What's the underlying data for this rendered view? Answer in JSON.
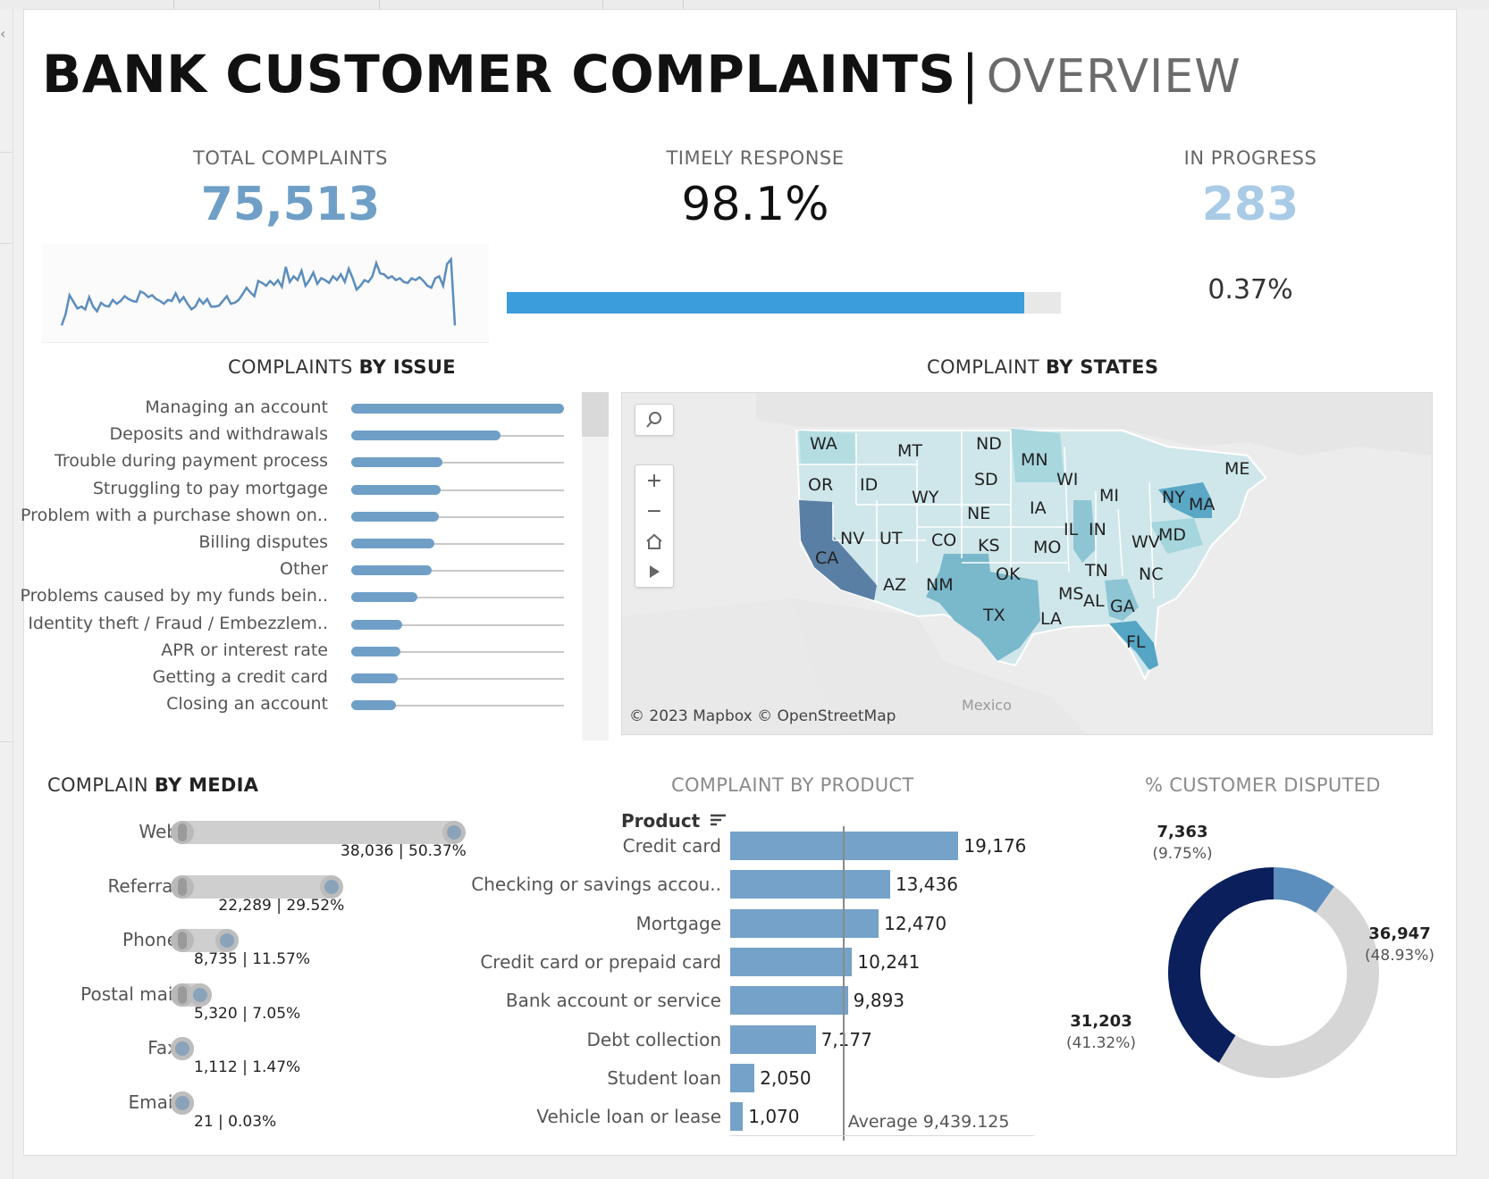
{
  "header": {
    "title": "BANK CUSTOMER COMPLAINTS",
    "separator": "|",
    "subtitle": "OVERVIEW"
  },
  "kpis": {
    "total": {
      "label": "TOTAL COMPLAINTS",
      "value": "75,513",
      "color": "#6f9fc7"
    },
    "timely": {
      "label": "TIMELY RESPONSE",
      "value": "98.1%",
      "fill_fraction": 0.981,
      "bar_color": "#3b9ddb"
    },
    "in_progress": {
      "label": "IN PROGRESS",
      "value": "283",
      "pct": "0.37%",
      "color": "#a9cbe6"
    }
  },
  "issues": {
    "title_a": "COMPLAINTS ",
    "title_b": "BY ISSUE",
    "items": [
      {
        "label": "Managing an account",
        "fraction": 1.0
      },
      {
        "label": "Deposits and withdrawals",
        "fraction": 0.7
      },
      {
        "label": "Trouble during payment process",
        "fraction": 0.43
      },
      {
        "label": "Struggling to pay mortgage",
        "fraction": 0.42
      },
      {
        "label": "Problem with a purchase shown on..",
        "fraction": 0.41
      },
      {
        "label": "Billing disputes",
        "fraction": 0.39
      },
      {
        "label": "Other",
        "fraction": 0.38
      },
      {
        "label": "Problems caused by my funds bein..",
        "fraction": 0.31
      },
      {
        "label": "Identity theft / Fraud / Embezzlem..",
        "fraction": 0.24
      },
      {
        "label": "APR or interest rate",
        "fraction": 0.23
      },
      {
        "label": "Getting a credit card",
        "fraction": 0.22
      },
      {
        "label": "Closing an account",
        "fraction": 0.21
      }
    ]
  },
  "states": {
    "title_a": "COMPLAINT ",
    "title_b": "BY STATES",
    "labels": [
      "WA",
      "MT",
      "ND",
      "MN",
      "ME",
      "OR",
      "ID",
      "SD",
      "WI",
      "MI",
      "NY",
      "MA",
      "WY",
      "NE",
      "IA",
      "IL",
      "IN",
      "NV",
      "UT",
      "CO",
      "KS",
      "MO",
      "WV",
      "MD",
      "CA",
      "OK",
      "TN",
      "NC",
      "AZ",
      "NM",
      "MS",
      "AL",
      "GA",
      "TX",
      "LA",
      "FL"
    ],
    "country_label": "Mexico",
    "attribution": "© 2023 Mapbox  © OpenStreetMap"
  },
  "media": {
    "title_a": "COMPLAIN ",
    "title_b": "BY MEDIA",
    "items": [
      {
        "label": "Web",
        "value": "38,036 | 50.37%",
        "fraction": 0.5037
      },
      {
        "label": "Referral",
        "value": "22,289 | 29.52%",
        "fraction": 0.2952
      },
      {
        "label": "Phone",
        "value": "8,735 | 11.57%",
        "fraction": 0.1157
      },
      {
        "label": "Postal mail",
        "value": "5,320 | 7.05%",
        "fraction": 0.0705
      },
      {
        "label": "Fax",
        "value": "1,112 | 1.47%",
        "fraction": 0.0147
      },
      {
        "label": "Email",
        "value": "21 | 0.03%",
        "fraction": 0.0003
      }
    ]
  },
  "product": {
    "title_a": "COMPLAINT ",
    "title_b": "BY PRODUCT",
    "header": "Product",
    "average_label": "Average 9,439.125",
    "average": 9439.125
  },
  "disputed": {
    "title": "% CUSTOMER DISPUTED",
    "segments": [
      {
        "value": "7,363",
        "pct": "(9.75%)"
      },
      {
        "value": "36,947",
        "pct": "(48.93%)"
      },
      {
        "value": "31,203",
        "pct": "(41.32%)"
      }
    ]
  },
  "chart_data": [
    {
      "type": "bar",
      "title": "COMPLAINT BY PRODUCT",
      "categories": [
        "Credit card",
        "Checking or savings accou..",
        "Mortgage",
        "Credit card or prepaid card",
        "Bank account or service",
        "Debt collection",
        "Student loan",
        "Vehicle loan or lease"
      ],
      "values": [
        19176,
        13436,
        12470,
        10241,
        9893,
        7177,
        2050,
        1070
      ],
      "value_labels": [
        "19,176",
        "13,436",
        "12,470",
        "10,241",
        "9,893",
        "7,177",
        "2,050",
        "1,070"
      ],
      "xlim": [
        0,
        27000
      ],
      "color": "#74a2c9"
    },
    {
      "type": "pie",
      "title": "% CUSTOMER DISPUTED",
      "values": [
        7363,
        36947,
        31203
      ],
      "colors": [
        "#5b8dbd",
        "#d6d6d6",
        "#0b1f5c"
      ]
    },
    {
      "type": "line",
      "title": "TOTAL COMPLAINTS",
      "values": [
        10,
        22,
        42,
        35,
        28,
        30,
        27,
        40,
        30,
        25,
        34,
        31,
        30,
        37,
        33,
        36,
        41,
        38,
        36,
        35,
        46,
        44,
        40,
        42,
        38,
        36,
        33,
        37,
        36,
        44,
        35,
        40,
        33,
        27,
        30,
        38,
        33,
        38,
        30,
        30,
        31,
        36,
        41,
        33,
        34,
        37,
        43,
        50,
        45,
        41,
        57,
        55,
        52,
        57,
        53,
        58,
        51,
        72,
        56,
        62,
        58,
        68,
        52,
        58,
        66,
        54,
        60,
        58,
        55,
        62,
        58,
        64,
        56,
        70,
        60,
        48,
        52,
        58,
        56,
        62,
        76,
        65,
        64,
        60,
        62,
        58,
        60,
        56,
        55,
        60,
        58,
        61,
        57,
        52,
        50,
        60,
        62,
        52,
        75,
        80,
        10
      ],
      "color": "#5b8dbd"
    }
  ]
}
